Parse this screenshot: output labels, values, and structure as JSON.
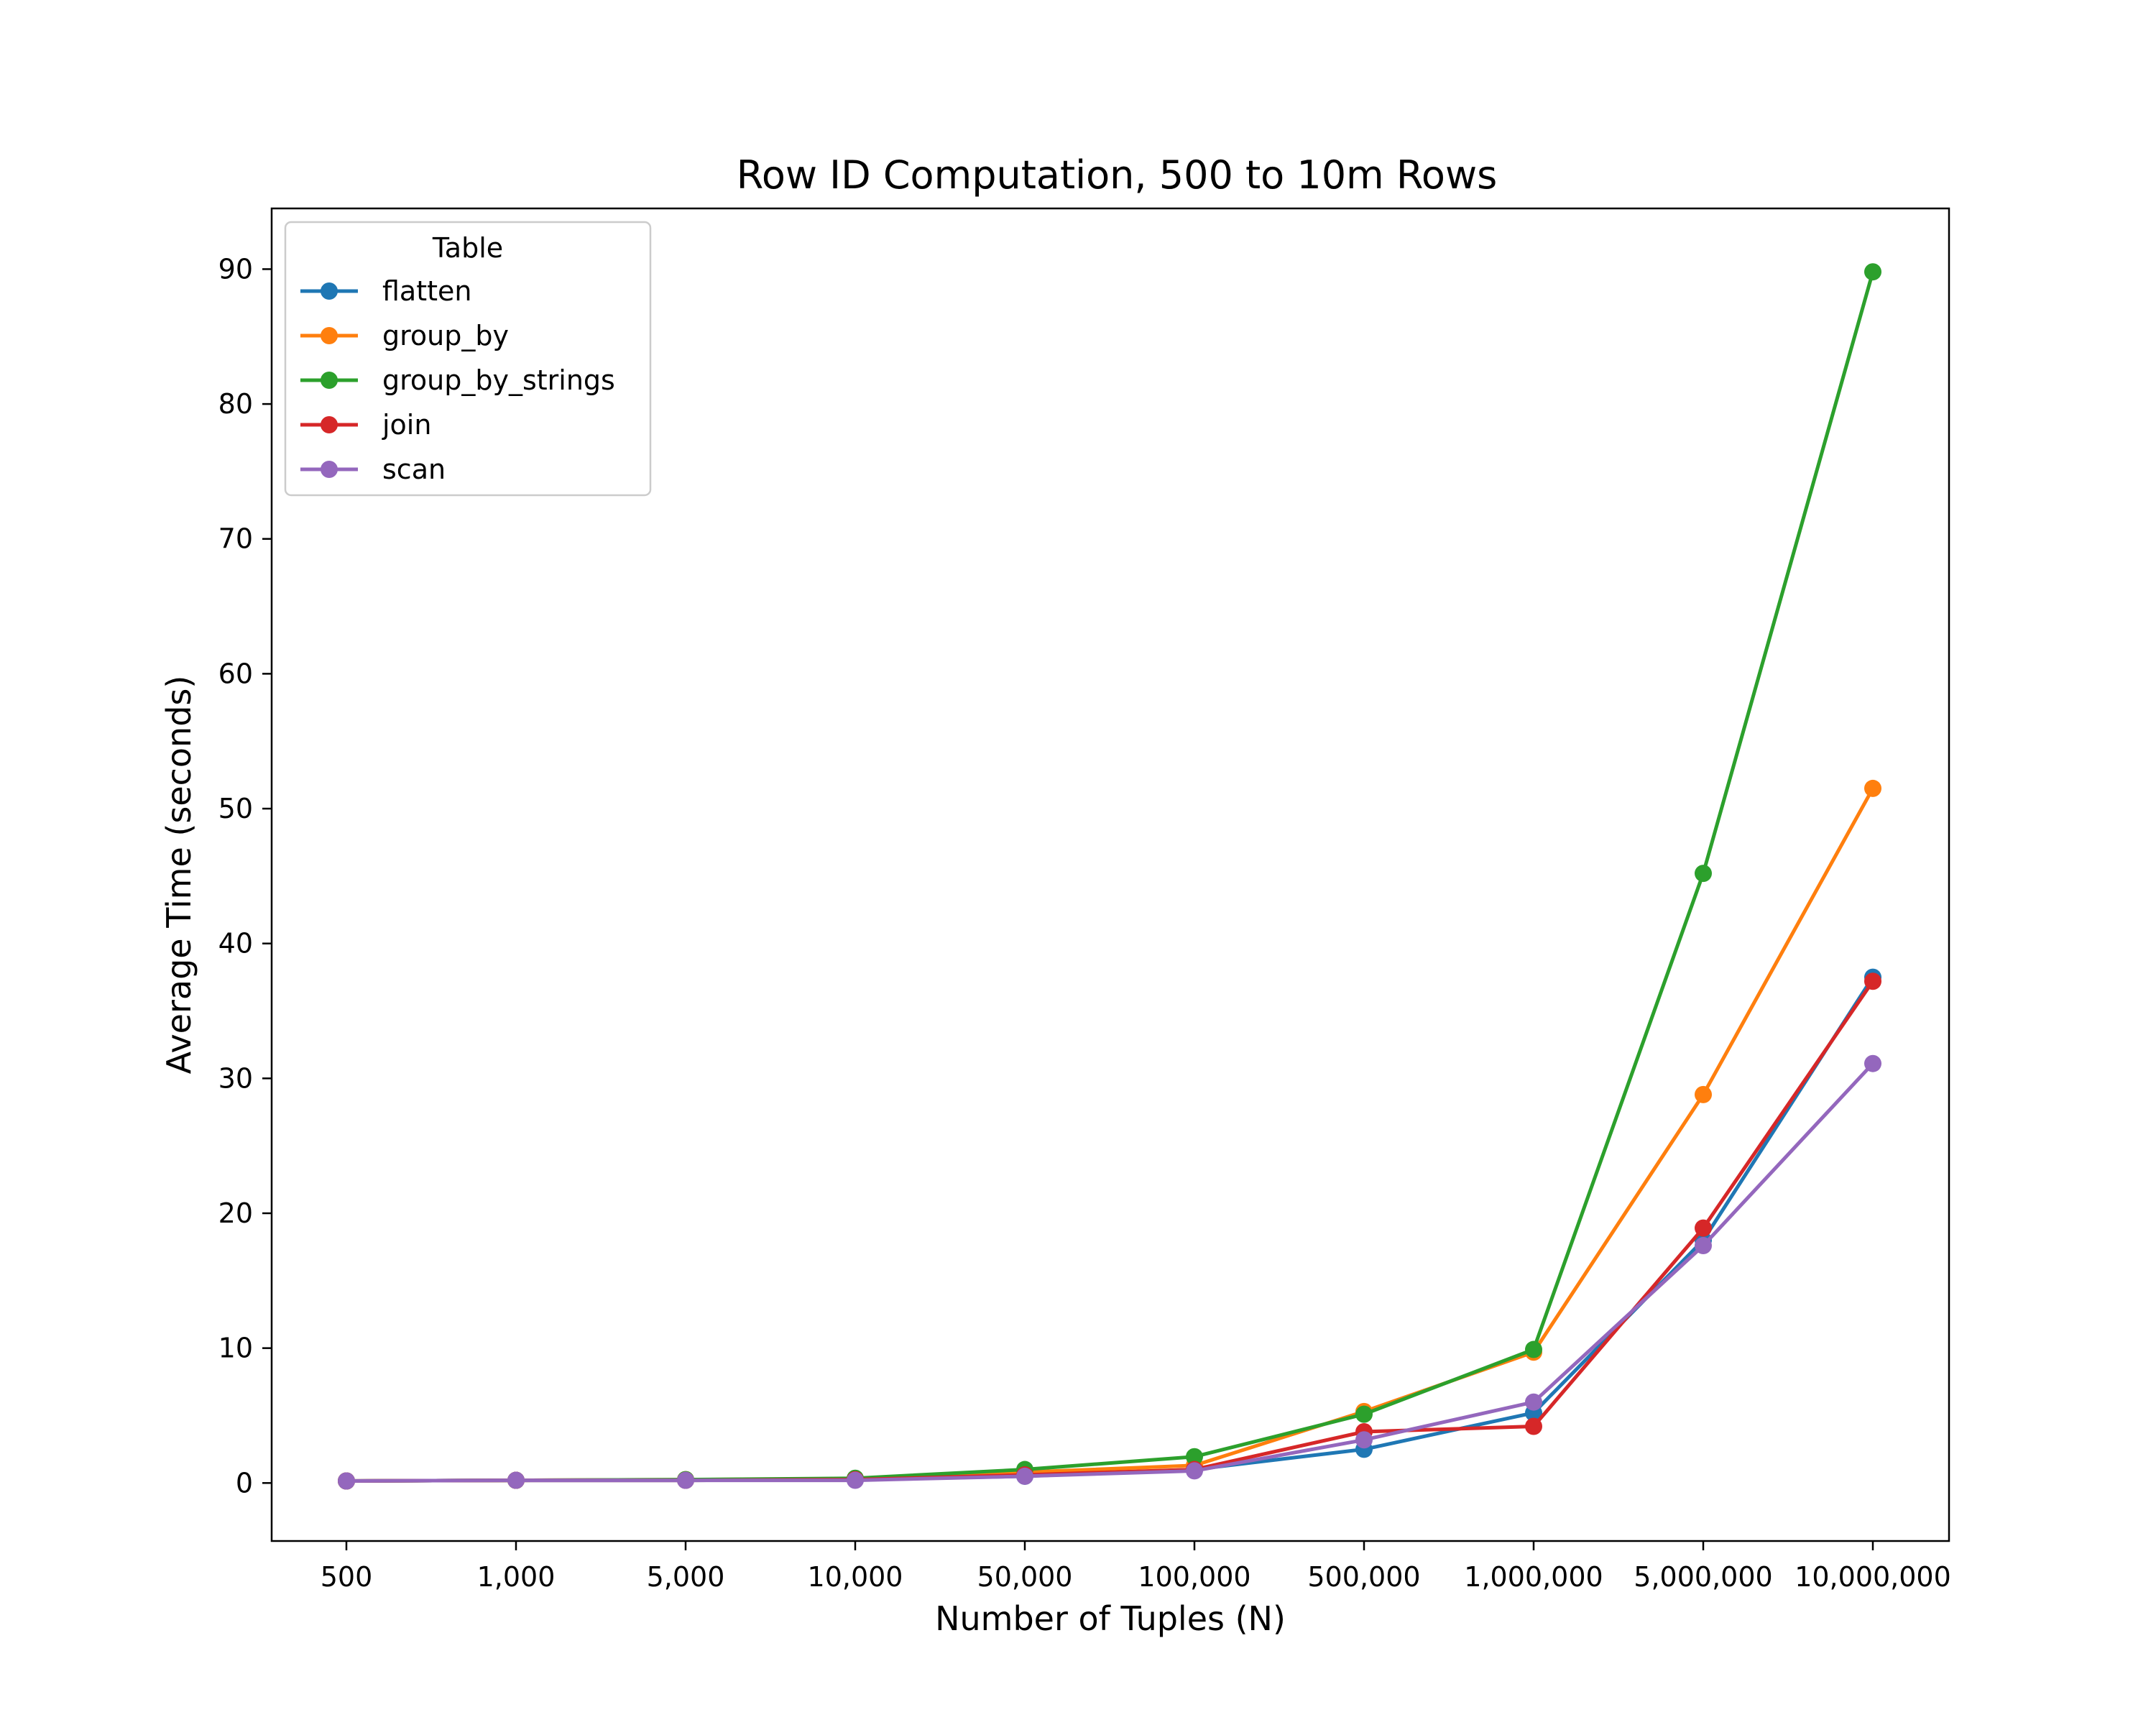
{
  "chart_data": {
    "type": "line",
    "title": "Row ID Computation, 500 to 10m Rows",
    "xlabel": "Number of Tuples (N)",
    "ylabel": "Average Time (seconds)",
    "categories": [
      "500",
      "1,000",
      "5,000",
      "10,000",
      "50,000",
      "100,000",
      "500,000",
      "1,000,000",
      "5,000,000",
      "10,000,000"
    ],
    "ylim": [
      -4.3,
      94.5
    ],
    "yticks": [
      0,
      10,
      20,
      30,
      40,
      50,
      60,
      70,
      80,
      90
    ],
    "grid": false,
    "legend": {
      "title": "Table",
      "placement": "top-left"
    },
    "series": [
      {
        "name": "flatten",
        "color": "#1f77b4",
        "values": [
          0.15,
          0.2,
          0.2,
          0.25,
          0.5,
          1.0,
          2.5,
          5.2,
          18.0,
          37.5
        ]
      },
      {
        "name": "group_by",
        "color": "#ff7f0e",
        "values": [
          0.15,
          0.2,
          0.25,
          0.3,
          0.8,
          1.3,
          5.3,
          9.7,
          28.8,
          51.5
        ]
      },
      {
        "name": "group_by_strings",
        "color": "#2ca02c",
        "values": [
          0.15,
          0.2,
          0.25,
          0.35,
          1.0,
          1.95,
          5.1,
          9.9,
          45.2,
          89.8
        ]
      },
      {
        "name": "join",
        "color": "#d62728",
        "values": [
          0.15,
          0.2,
          0.2,
          0.25,
          0.6,
          1.0,
          3.8,
          4.2,
          18.9,
          37.2
        ]
      },
      {
        "name": "scan",
        "color": "#9467bd",
        "values": [
          0.15,
          0.2,
          0.2,
          0.2,
          0.5,
          0.9,
          3.2,
          6.0,
          17.6,
          31.1
        ]
      }
    ]
  }
}
